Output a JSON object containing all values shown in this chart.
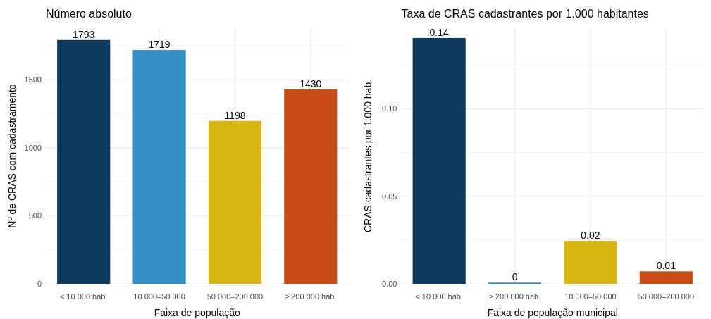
{
  "chart_data": [
    {
      "type": "bar",
      "title": "Número absoluto",
      "xlabel": "Faixa de população",
      "ylabel": "Nº de CRAS com cadastramento",
      "categories": [
        "< 10 000 hab.",
        "10 000–50 000",
        "50 000–200 000",
        "≥ 200 000 hab."
      ],
      "values": [
        1793,
        1719,
        1198,
        1430
      ],
      "colors": [
        "#0d3b5e",
        "#3390c7",
        "#d9b512",
        "#c94c17"
      ],
      "ylim": [
        0,
        1880
      ],
      "yticks": [
        0,
        {
          "value": 250,
          "label": null
        },
        500,
        {
          "value": 750,
          "label": null
        },
        1000,
        {
          "value": 1250,
          "label": null
        },
        1500,
        {
          "value": 1750,
          "label": null
        }
      ],
      "data_labels": true,
      "grid": true
    },
    {
      "type": "bar",
      "title": "Taxa de CRAS cadastrantes por 1.000 habitantes",
      "xlabel": "Faixa de população municipal",
      "ylabel": "CRAS cadastrantes por 1.000 hab.",
      "categories": [
        "< 10 000 hab.",
        "≥ 200 000 hab.",
        "10 000–50 000",
        "50 000–200 000"
      ],
      "values": [
        0.1404,
        0.0007,
        0.0245,
        0.0071
      ],
      "value_labels": [
        "0.14",
        "0",
        "0.02",
        "0.01"
      ],
      "colors": [
        "#0d3b5e",
        "#3390c7",
        "#d9b512",
        "#c94c17"
      ],
      "ylim": [
        0,
        0.146
      ],
      "yticks": [
        {
          "value": 0,
          "label": "0.00"
        },
        {
          "value": 0.025,
          "label": null
        },
        {
          "value": 0.05,
          "label": "0.05"
        },
        {
          "value": 0.075,
          "label": null
        },
        {
          "value": 0.1,
          "label": "0.10"
        },
        {
          "value": 0.125,
          "label": null
        }
      ],
      "grid": true
    }
  ]
}
